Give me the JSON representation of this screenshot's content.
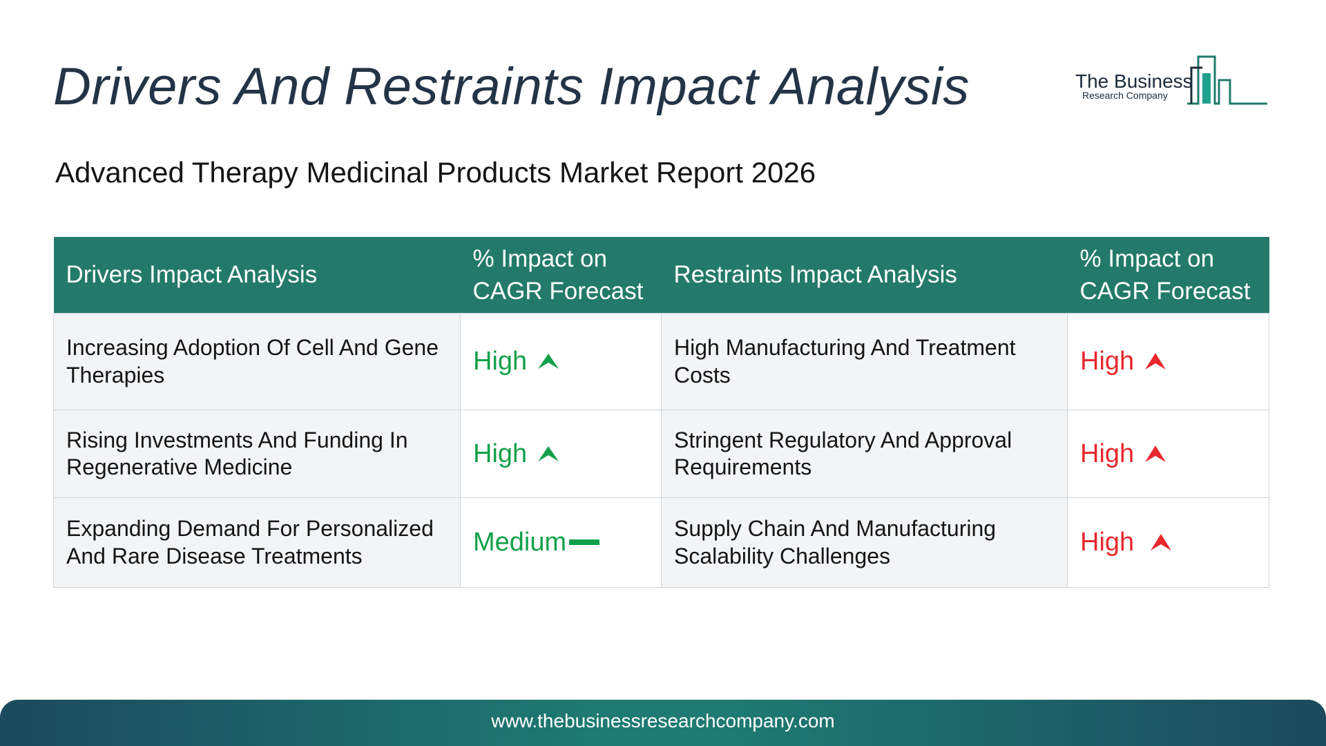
{
  "title": "Drivers And Restraints Impact Analysis",
  "subtitle": "Advanced Therapy Medicinal Products Market Report 2026",
  "logo": {
    "main": "The Business",
    "sub": "Research Company",
    "icon": "bar-chart-logo-icon"
  },
  "table": {
    "headers": [
      "Drivers Impact Analysis",
      "% Impact on CAGR Forecast",
      "Restraints Impact Analysis",
      "% Impact on CAGR Forecast"
    ],
    "rows": [
      {
        "driver": "Increasing Adoption Of Cell And Gene Therapies",
        "driver_impact": "High",
        "driver_icon": "up-arrow-icon",
        "restraint": "High Manufacturing And Treatment Costs",
        "restraint_impact": "High",
        "restraint_icon": "up-arrow-icon"
      },
      {
        "driver": "Rising Investments And Funding In Regenerative Medicine",
        "driver_impact": "High",
        "driver_icon": "up-arrow-icon",
        "restraint": "Stringent Regulatory And Approval Requirements",
        "restraint_impact": "High",
        "restraint_icon": "up-arrow-icon"
      },
      {
        "driver": "Expanding Demand For Personalized And Rare Disease Treatments",
        "driver_impact": "Medium",
        "driver_icon": "dash-icon",
        "restraint": "Supply Chain And Manufacturing Scalability Challenges",
        "restraint_impact": "High",
        "restraint_icon": "up-arrow-icon"
      }
    ]
  },
  "colors": {
    "header_bg": "#237a6a",
    "driver_impact": "#12a04a",
    "restraint_impact": "#e8282e"
  },
  "footer": {
    "url": "www.thebusinessresearchcompany.com"
  }
}
